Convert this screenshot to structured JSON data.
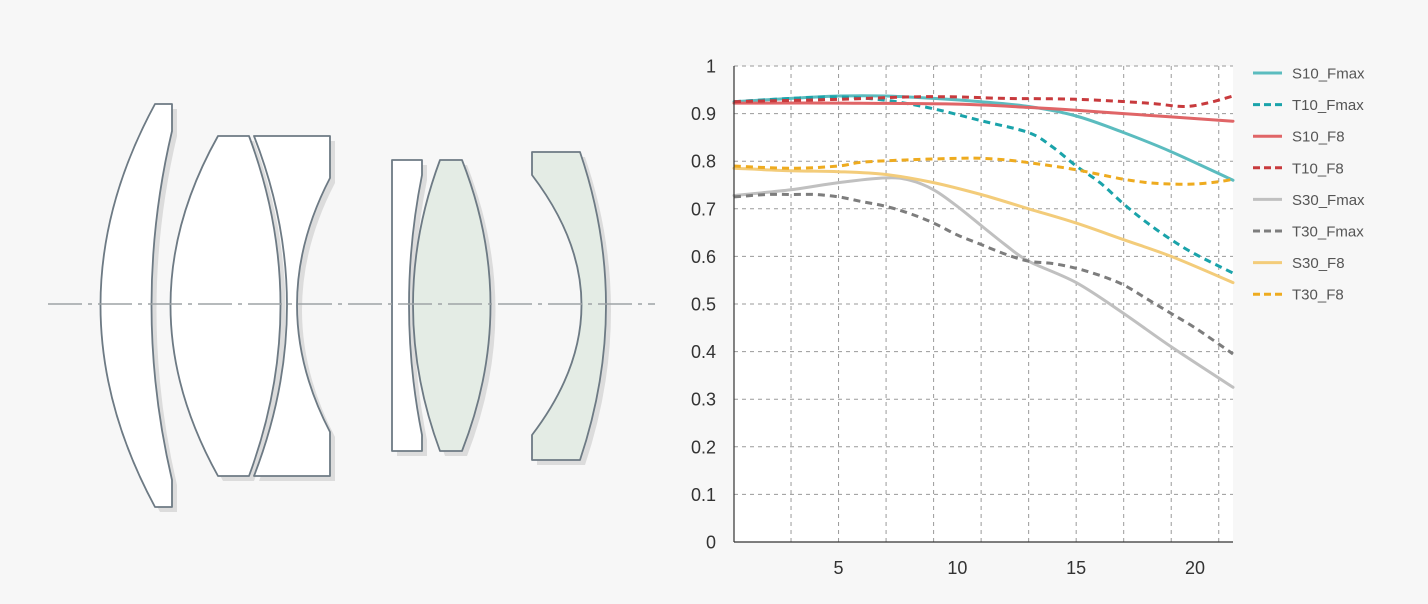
{
  "lens_diagram": {
    "element_stroke": "#6d7a84",
    "element_fill": "#ffffff",
    "element_fill_tinted": "#e4ece5",
    "axis_color": "#9ea3a6"
  },
  "chart_data": {
    "type": "line",
    "title": "",
    "xlabel": "",
    "ylabel": "",
    "xlim": [
      0.6,
      21.6
    ],
    "ylim": [
      0,
      1
    ],
    "x_ticks": [
      5,
      10,
      15,
      20
    ],
    "y_ticks": [
      0,
      0.1,
      0.2,
      0.3,
      0.4,
      0.5,
      0.6,
      0.7,
      0.8,
      0.9,
      1
    ],
    "y_tick_labels": [
      "0",
      "0.1",
      "0.2",
      "0.3",
      "0.4",
      "0.5",
      "0.6",
      "0.7",
      "0.8",
      "0.9",
      "1"
    ],
    "grid": true,
    "legend_position": "right",
    "series": [
      {
        "name": "S10_Fmax",
        "color": "#5bbcbf",
        "dash": false,
        "x": [
          0.6,
          3,
          5,
          7,
          9,
          11,
          13,
          15,
          17,
          19,
          21.6
        ],
        "y": [
          0.925,
          0.932,
          0.937,
          0.937,
          0.932,
          0.925,
          0.915,
          0.895,
          0.86,
          0.82,
          0.76
        ]
      },
      {
        "name": "T10_Fmax",
        "color": "#1aa3aa",
        "dash": true,
        "x": [
          0.6,
          3,
          5,
          7,
          9,
          11,
          13,
          14,
          15,
          16,
          17,
          18,
          19,
          20,
          21.6
        ],
        "y": [
          0.925,
          0.932,
          0.935,
          0.928,
          0.91,
          0.885,
          0.86,
          0.83,
          0.79,
          0.755,
          0.71,
          0.67,
          0.635,
          0.605,
          0.565
        ]
      },
      {
        "name": "S10_F8",
        "color": "#e06567",
        "dash": false,
        "x": [
          0.6,
          5,
          10,
          13,
          15,
          17,
          19,
          21.6
        ],
        "y": [
          0.922,
          0.922,
          0.92,
          0.913,
          0.907,
          0.9,
          0.893,
          0.884
        ]
      },
      {
        "name": "T10_F8",
        "color": "#c83a3d",
        "dash": true,
        "x": [
          0.6,
          5,
          8,
          10,
          12,
          15,
          18,
          19.5,
          20.5,
          21.6
        ],
        "y": [
          0.925,
          0.93,
          0.935,
          0.935,
          0.932,
          0.93,
          0.922,
          0.915,
          0.922,
          0.937
        ]
      },
      {
        "name": "S30_Fmax",
        "color": "#c0c0c0",
        "dash": false,
        "x": [
          0.6,
          3,
          5,
          7,
          8,
          9,
          10,
          11,
          12,
          13,
          15,
          17,
          19,
          21.6
        ],
        "y": [
          0.728,
          0.74,
          0.755,
          0.765,
          0.76,
          0.74,
          0.705,
          0.665,
          0.625,
          0.59,
          0.545,
          0.48,
          0.41,
          0.325
        ]
      },
      {
        "name": "T30_Fmax",
        "color": "#7d7d7d",
        "dash": true,
        "x": [
          0.6,
          2,
          3,
          4,
          5,
          6,
          7,
          8,
          9,
          10,
          11,
          12,
          13,
          14,
          15,
          16,
          17,
          18,
          19,
          20,
          21.6
        ],
        "y": [
          0.725,
          0.73,
          0.73,
          0.73,
          0.725,
          0.715,
          0.705,
          0.69,
          0.67,
          0.645,
          0.625,
          0.605,
          0.59,
          0.585,
          0.575,
          0.56,
          0.54,
          0.51,
          0.48,
          0.45,
          0.395
        ]
      },
      {
        "name": "S30_F8",
        "color": "#f3cc7a",
        "dash": false,
        "x": [
          0.6,
          3,
          5,
          7,
          9,
          11,
          13,
          15,
          17,
          19,
          21.6
        ],
        "y": [
          0.785,
          0.78,
          0.778,
          0.772,
          0.755,
          0.73,
          0.7,
          0.67,
          0.635,
          0.6,
          0.545
        ]
      },
      {
        "name": "T30_F8",
        "color": "#eeab1f",
        "dash": true,
        "x": [
          0.6,
          3,
          5,
          6,
          8,
          10,
          11,
          12,
          13,
          14,
          15,
          16,
          17,
          18,
          19,
          20,
          21,
          21.6
        ],
        "y": [
          0.79,
          0.785,
          0.79,
          0.798,
          0.803,
          0.806,
          0.806,
          0.803,
          0.797,
          0.79,
          0.782,
          0.772,
          0.762,
          0.755,
          0.752,
          0.752,
          0.757,
          0.762
        ]
      }
    ]
  }
}
